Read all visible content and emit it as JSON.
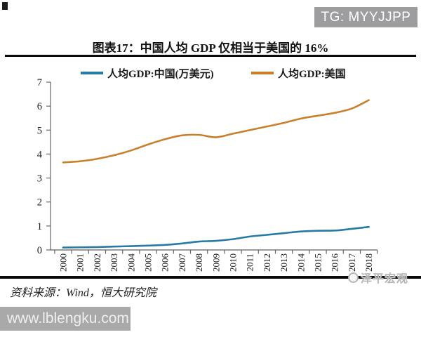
{
  "page": {
    "badge": "TG: MYYJJPP",
    "title": "图表17：中国人均 GDP 仅相当于美国的 16%",
    "source_note": "资料来源：Wind，恒大研究院",
    "site_watermark": "www.lblengku.com",
    "brand_watermark": "泽平宏观"
  },
  "chart_data": {
    "type": "line",
    "title": "中国人均 GDP 仅相当于美国的 16%",
    "categories": [
      "2000",
      "2001",
      "2002",
      "2003",
      "2004",
      "2005",
      "2006",
      "2007",
      "2008",
      "2009",
      "2010",
      "2011",
      "2012",
      "2013",
      "2014",
      "2015",
      "2016",
      "2017",
      "2018"
    ],
    "series": [
      {
        "name": "人均GDP:中国(万美元)",
        "color": "#2879A6",
        "values": [
          0.1,
          0.11,
          0.12,
          0.14,
          0.16,
          0.18,
          0.21,
          0.27,
          0.35,
          0.38,
          0.45,
          0.56,
          0.63,
          0.7,
          0.77,
          0.8,
          0.81,
          0.88,
          0.96
        ]
      },
      {
        "name": "人均GDP:美国",
        "color": "#C8802D",
        "values": [
          3.65,
          3.7,
          3.8,
          3.95,
          4.15,
          4.4,
          4.62,
          4.78,
          4.8,
          4.7,
          4.85,
          5.0,
          5.15,
          5.3,
          5.48,
          5.6,
          5.72,
          5.9,
          6.25
        ]
      }
    ],
    "xlabel": "",
    "ylabel": "",
    "ylim": [
      0,
      7
    ],
    "yticks": [
      0,
      1,
      2,
      3,
      4,
      5,
      6,
      7
    ],
    "grid": false,
    "legend_position": "top"
  }
}
